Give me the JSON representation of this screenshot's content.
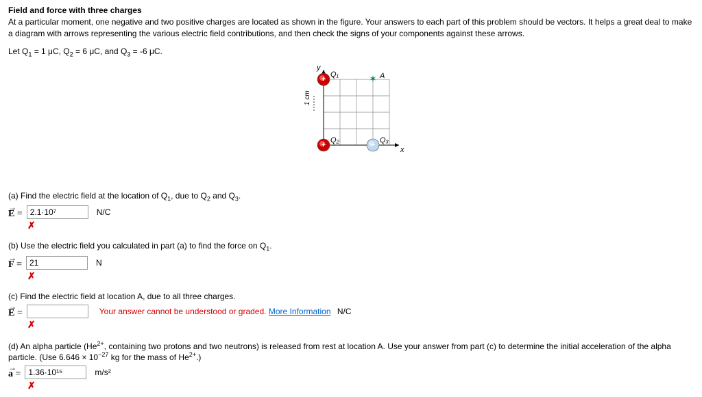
{
  "title": "Field and force with three charges",
  "intro": "At a particular moment, one negative and two positive charges are located as shown in the figure. Your answers to each part of this problem should be vectors. It helps a great deal to make a diagram with arrows representing the various electric field contributions, and then check the signs of your components against these arrows.",
  "let_html": "Let Q<sub>1</sub> = 1 μC, Q<sub>2</sub> = 6 μC, and Q<sub>3</sub> = -6 μC.",
  "diagram": {
    "grid_cols": 4,
    "grid_rows": 4,
    "cell": 24,
    "colors": {
      "bg": "#ffffff",
      "grid": "#888888",
      "grid_light": "#d8e4e8",
      "axis": "#000000",
      "positive_fill": "#cc0000",
      "positive_hl": "#ff6666",
      "negative_fill": "#c0d8f0",
      "negative_hl": "#e8f0fa",
      "point_A": "#008040",
      "label": "#000000"
    },
    "labels": {
      "Q1": "Q₁",
      "Q2": "Q₂",
      "Q3": "Q₃",
      "A": "A",
      "x": "x",
      "y": "y",
      "scale": "1 cm"
    },
    "positions": {
      "Q1": [
        0,
        0
      ],
      "Q2": [
        0,
        -4
      ],
      "Q3": [
        3,
        -4
      ],
      "A": [
        3,
        0
      ]
    }
  },
  "parts": {
    "a": {
      "prompt_html": "(a) Find the electric field at the location of Q<sub>1</sub>, due to Q<sub>2</sub> and Q<sub>3</sub>.",
      "symbol": "E",
      "value": "2.1·10⁷",
      "unit": "N/C",
      "wrong": true
    },
    "b": {
      "prompt_html": "(b) Use the electric field you calculated in part (a) to find the force on Q<sub>1</sub>.",
      "symbol": "F",
      "value": "21",
      "unit": "N",
      "wrong": true
    },
    "c": {
      "prompt_html": "(c) Find the electric field at location A, due to all three charges.",
      "symbol": "E",
      "value": "",
      "unit": "N/C",
      "error": "Your answer cannot be understood or graded.",
      "more": "More Information",
      "wrong": true
    },
    "d": {
      "prompt_html": "(d) An alpha particle (He<sup>2+</sup>, containing two protons and two neutrons) is released from rest at location A. Use your answer from part (c) to determine the initial acceleration of the alpha particle. (Use 6.646 × 10<sup>−27</sup> kg for the mass of He<sup>2+</sup>.)",
      "symbol": "a",
      "value": "1.36·10¹⁵",
      "unit": "m/s²",
      "wrong": true
    }
  }
}
